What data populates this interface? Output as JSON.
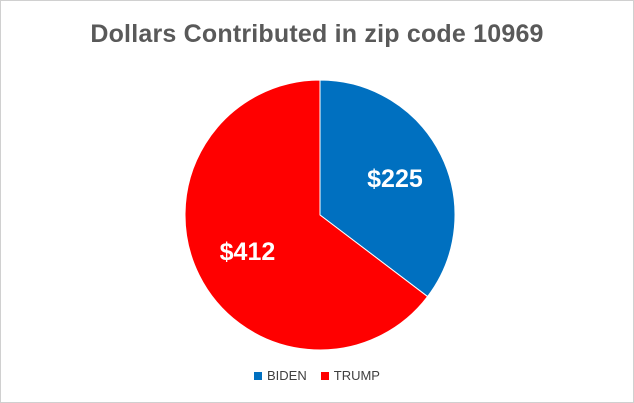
{
  "chart_data": {
    "type": "pie",
    "title": "Dollars Contributed in zip code 10969",
    "categories": [
      "BIDEN",
      "TRUMP"
    ],
    "values": [
      225,
      412
    ],
    "data_labels": [
      "$225",
      "$412"
    ],
    "colors": [
      "#0070c0",
      "#ff0000"
    ],
    "legend": "bottom"
  }
}
